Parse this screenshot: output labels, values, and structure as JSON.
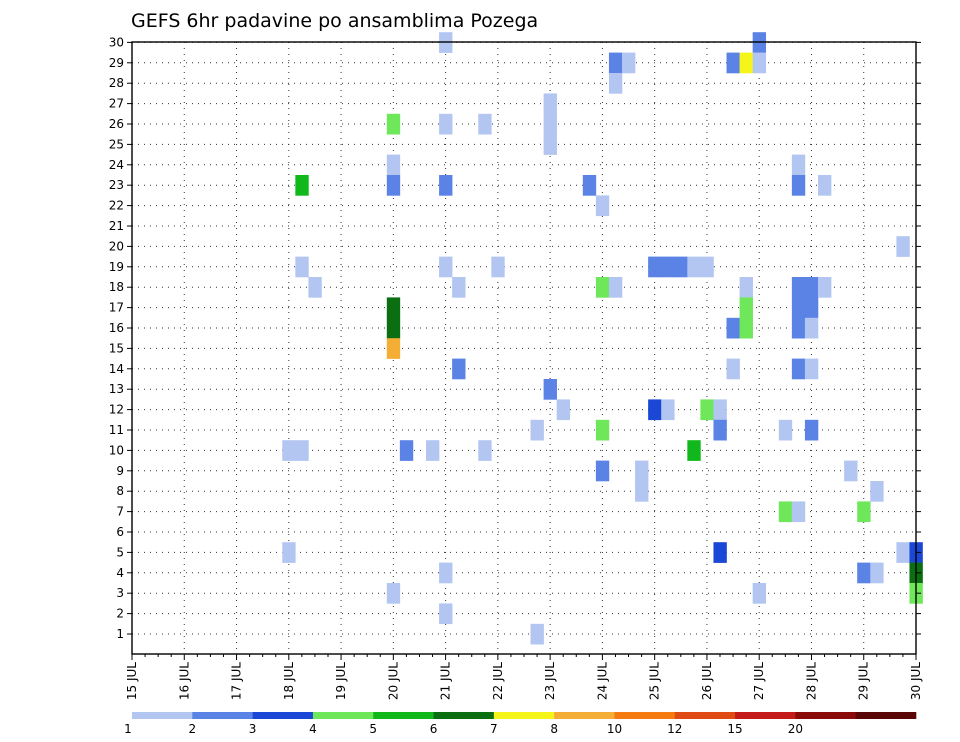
{
  "chart_data": {
    "type": "heatmap",
    "title": "GEFS 6hr padavine po ansamblima Pozega",
    "xlabel": "",
    "ylabel": "",
    "x_ticks": [
      "15 JUL",
      "16 JUL",
      "17 JUL",
      "18 JUL",
      "19 JUL",
      "20 JUL",
      "21 JUL",
      "22 JUL",
      "23 JUL",
      "24 JUL",
      "25 JUL",
      "26 JUL",
      "27 JUL",
      "28 JUL",
      "29 JUL",
      "30 JUL"
    ],
    "x_unit": "6-hour step from 15 JUL 00Z",
    "y_members": [
      1,
      2,
      3,
      4,
      5,
      6,
      7,
      8,
      9,
      10,
      11,
      12,
      13,
      14,
      15,
      16,
      17,
      18,
      19,
      20,
      21,
      22,
      23,
      24,
      25,
      26,
      27,
      28,
      29,
      30
    ],
    "ylim": [
      1,
      30
    ],
    "grid": true,
    "legend": {
      "placement": "bottom",
      "labels": [
        "1",
        "2",
        "3",
        "4",
        "5",
        "6",
        "7",
        "8",
        "10",
        "12",
        "15",
        "20"
      ],
      "colors": [
        "#b3c6f2",
        "#5b83e6",
        "#1a47d6",
        "#6ee85a",
        "#10b81c",
        "#0b6e10",
        "#f5f51a",
        "#f5ae35",
        "#f57b10",
        "#e04a14",
        "#c41a1a",
        "#8a0a0a",
        "#5a0606"
      ]
    },
    "cells": [
      {
        "member": 30,
        "step": 24,
        "level": 1
      },
      {
        "member": 30,
        "step": 48,
        "level": 2
      },
      {
        "member": 29,
        "step": 37,
        "level": 2
      },
      {
        "member": 29,
        "step": 38,
        "level": 1
      },
      {
        "member": 29,
        "step": 46,
        "level": 2
      },
      {
        "member": 29,
        "step": 47,
        "level": 7
      },
      {
        "member": 29,
        "step": 48,
        "level": 1
      },
      {
        "member": 28,
        "step": 37,
        "level": 1
      },
      {
        "member": 27,
        "step": 32,
        "level": 1
      },
      {
        "member": 26,
        "step": 20,
        "level": 4
      },
      {
        "member": 26,
        "step": 24,
        "level": 1
      },
      {
        "member": 26,
        "step": 27,
        "level": 1
      },
      {
        "member": 26,
        "step": 32,
        "level": 1
      },
      {
        "member": 25,
        "step": 32,
        "level": 1
      },
      {
        "member": 24,
        "step": 20,
        "level": 1
      },
      {
        "member": 24,
        "step": 51,
        "level": 1
      },
      {
        "member": 23,
        "step": 13,
        "level": 5
      },
      {
        "member": 23,
        "step": 20,
        "level": 2
      },
      {
        "member": 23,
        "step": 24,
        "level": 2
      },
      {
        "member": 23,
        "step": 35,
        "level": 2
      },
      {
        "member": 23,
        "step": 51,
        "level": 2
      },
      {
        "member": 23,
        "step": 53,
        "level": 1
      },
      {
        "member": 22,
        "step": 36,
        "level": 1
      },
      {
        "member": 20,
        "step": 59,
        "level": 1
      },
      {
        "member": 19,
        "step": 13,
        "level": 1
      },
      {
        "member": 19,
        "step": 24,
        "level": 1
      },
      {
        "member": 19,
        "step": 28,
        "level": 1
      },
      {
        "member": 19,
        "step": 40,
        "level": 2
      },
      {
        "member": 19,
        "step": 41,
        "level": 2
      },
      {
        "member": 19,
        "step": 42,
        "level": 2
      },
      {
        "member": 19,
        "step": 43,
        "level": 1
      },
      {
        "member": 19,
        "step": 44,
        "level": 1
      },
      {
        "member": 18,
        "step": 14,
        "level": 1
      },
      {
        "member": 18,
        "step": 25,
        "level": 1
      },
      {
        "member": 18,
        "step": 36,
        "level": 4
      },
      {
        "member": 18,
        "step": 37,
        "level": 1
      },
      {
        "member": 18,
        "step": 47,
        "level": 1
      },
      {
        "member": 18,
        "step": 51,
        "level": 2
      },
      {
        "member": 18,
        "step": 52,
        "level": 2
      },
      {
        "member": 18,
        "step": 53,
        "level": 1
      },
      {
        "member": 17,
        "step": 20,
        "level": 6
      },
      {
        "member": 17,
        "step": 47,
        "level": 4
      },
      {
        "member": 17,
        "step": 51,
        "level": 2
      },
      {
        "member": 17,
        "step": 52,
        "level": 2
      },
      {
        "member": 16,
        "step": 20,
        "level": 6
      },
      {
        "member": 16,
        "step": 46,
        "level": 2
      },
      {
        "member": 16,
        "step": 47,
        "level": 4
      },
      {
        "member": 16,
        "step": 51,
        "level": 2
      },
      {
        "member": 16,
        "step": 52,
        "level": 1
      },
      {
        "member": 15,
        "step": 20,
        "level": 8
      },
      {
        "member": 14,
        "step": 25,
        "level": 2
      },
      {
        "member": 14,
        "step": 46,
        "level": 1
      },
      {
        "member": 14,
        "step": 51,
        "level": 2
      },
      {
        "member": 14,
        "step": 52,
        "level": 1
      },
      {
        "member": 13,
        "step": 32,
        "level": 2
      },
      {
        "member": 12,
        "step": 33,
        "level": 1
      },
      {
        "member": 12,
        "step": 40,
        "level": 3
      },
      {
        "member": 12,
        "step": 41,
        "level": 1
      },
      {
        "member": 12,
        "step": 44,
        "level": 4
      },
      {
        "member": 12,
        "step": 45,
        "level": 1
      },
      {
        "member": 11,
        "step": 31,
        "level": 1
      },
      {
        "member": 11,
        "step": 36,
        "level": 4
      },
      {
        "member": 11,
        "step": 45,
        "level": 2
      },
      {
        "member": 11,
        "step": 50,
        "level": 1
      },
      {
        "member": 11,
        "step": 52,
        "level": 2
      },
      {
        "member": 10,
        "step": 12,
        "level": 1
      },
      {
        "member": 10,
        "step": 13,
        "level": 1
      },
      {
        "member": 10,
        "step": 21,
        "level": 2
      },
      {
        "member": 10,
        "step": 23,
        "level": 1
      },
      {
        "member": 10,
        "step": 27,
        "level": 1
      },
      {
        "member": 10,
        "step": 43,
        "level": 5
      },
      {
        "member": 9,
        "step": 36,
        "level": 2
      },
      {
        "member": 9,
        "step": 39,
        "level": 1
      },
      {
        "member": 9,
        "step": 55,
        "level": 1
      },
      {
        "member": 8,
        "step": 39,
        "level": 1
      },
      {
        "member": 8,
        "step": 57,
        "level": 1
      },
      {
        "member": 7,
        "step": 50,
        "level": 4
      },
      {
        "member": 7,
        "step": 51,
        "level": 1
      },
      {
        "member": 7,
        "step": 56,
        "level": 4
      },
      {
        "member": 5,
        "step": 12,
        "level": 1
      },
      {
        "member": 5,
        "step": 45,
        "level": 3
      },
      {
        "member": 5,
        "step": 59,
        "level": 1
      },
      {
        "member": 5,
        "step": 60,
        "level": 3
      },
      {
        "member": 4,
        "step": 24,
        "level": 1
      },
      {
        "member": 4,
        "step": 56,
        "level": 2
      },
      {
        "member": 4,
        "step": 57,
        "level": 1
      },
      {
        "member": 4,
        "step": 60,
        "level": 6
      },
      {
        "member": 3,
        "step": 20,
        "level": 1
      },
      {
        "member": 3,
        "step": 48,
        "level": 1
      },
      {
        "member": 3,
        "step": 60,
        "level": 4
      },
      {
        "member": 2,
        "step": 24,
        "level": 1
      },
      {
        "member": 1,
        "step": 31,
        "level": 1
      }
    ]
  }
}
